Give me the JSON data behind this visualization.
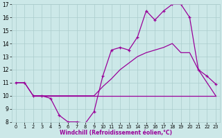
{
  "xlabel": "Windchill (Refroidissement éolien,°C)",
  "xlim": [
    -0.5,
    23.5
  ],
  "ylim": [
    8,
    17
  ],
  "xticks": [
    0,
    1,
    2,
    3,
    4,
    5,
    6,
    7,
    8,
    9,
    10,
    11,
    12,
    13,
    14,
    15,
    16,
    17,
    18,
    19,
    20,
    21,
    22,
    23
  ],
  "yticks": [
    8,
    9,
    10,
    11,
    12,
    13,
    14,
    15,
    16,
    17
  ],
  "bg_color": "#cce8e8",
  "grid_color": "#aacccc",
  "line_color": "#990099",
  "line1_x": [
    0,
    1,
    2,
    3,
    4,
    5,
    6,
    7,
    8,
    9,
    10,
    11,
    12,
    13,
    14,
    15,
    16,
    17,
    18,
    19,
    20,
    21,
    22,
    23
  ],
  "line1_y": [
    11,
    11,
    10,
    10,
    9.8,
    8.5,
    8.0,
    8.0,
    7.9,
    8.8,
    11.5,
    13.5,
    13.7,
    13.5,
    14.5,
    16.5,
    15.8,
    16.5,
    17.0,
    17.0,
    16.0,
    12.0,
    11.5,
    10.9
  ],
  "line2_x": [
    2,
    3,
    4,
    5,
    6,
    7,
    8,
    9,
    10,
    11,
    12,
    13,
    14,
    15,
    16,
    17,
    18,
    19,
    20,
    21,
    22,
    23
  ],
  "line2_y": [
    10,
    10,
    10,
    10,
    10,
    10,
    10,
    10,
    10,
    10,
    10,
    10,
    10,
    10,
    10,
    10,
    10,
    10,
    10,
    10,
    10,
    10
  ],
  "line3_x": [
    0,
    1,
    2,
    3,
    4,
    5,
    6,
    7,
    8,
    9,
    10,
    11,
    12,
    13,
    14,
    15,
    16,
    17,
    18,
    19,
    20,
    21,
    22,
    23
  ],
  "line3_y": [
    11,
    11,
    10,
    10,
    10,
    10,
    10,
    10,
    10,
    10,
    10.7,
    11.3,
    12.0,
    12.5,
    13.0,
    13.3,
    13.5,
    13.7,
    14.0,
    13.3,
    13.3,
    12.0,
    11.0,
    10.0
  ]
}
